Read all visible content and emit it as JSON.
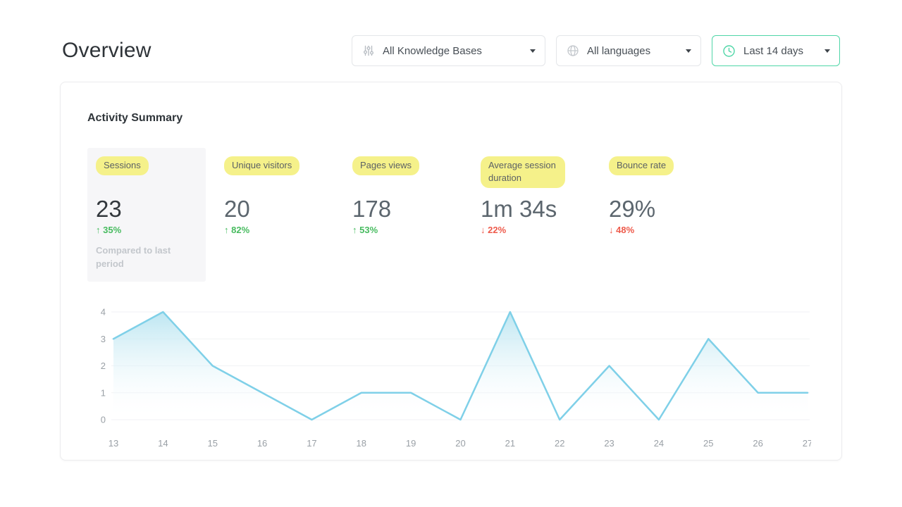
{
  "page": {
    "title": "Overview"
  },
  "filters": {
    "knowledge_bases": {
      "label": "All Knowledge Bases",
      "icon": "sliders-icon"
    },
    "languages": {
      "label": "All languages",
      "icon": "globe-icon"
    },
    "date_range": {
      "label": "Last 14 days",
      "icon": "clock-icon",
      "accent_color": "#4fd6a7"
    }
  },
  "activity_summary": {
    "title": "Activity Summary",
    "metrics": [
      {
        "label": "Sessions",
        "value": "23",
        "arrow": "↑",
        "delta": "35%",
        "direction": "up",
        "note": "Compared to last period",
        "selected": true
      },
      {
        "label": "Unique visitors",
        "value": "20",
        "arrow": "↑",
        "delta": "82%",
        "direction": "up",
        "note": "",
        "selected": false
      },
      {
        "label": "Pages views",
        "value": "178",
        "arrow": "↑",
        "delta": "53%",
        "direction": "up",
        "note": "",
        "selected": false
      },
      {
        "label": "Average session duration",
        "value": "1m 34s",
        "arrow": "↓",
        "delta": "22%",
        "direction": "down",
        "note": "",
        "selected": false
      },
      {
        "label": "Bounce rate",
        "value": "29%",
        "arrow": "↓",
        "delta": "48%",
        "direction": "down",
        "note": "",
        "selected": false
      }
    ],
    "highlight_color": "#f5f18a",
    "up_color": "#47bb5f",
    "down_color": "#ee5a4b"
  },
  "chart_data": {
    "type": "area",
    "x": [
      13,
      14,
      15,
      16,
      17,
      18,
      19,
      20,
      21,
      22,
      23,
      24,
      25,
      26,
      27
    ],
    "values": [
      3,
      4,
      2,
      1,
      0,
      1,
      1,
      0,
      4,
      0,
      2,
      0,
      3,
      1,
      1
    ],
    "title": "",
    "xlabel": "",
    "ylabel": "",
    "ylim": [
      0,
      4
    ],
    "yticks": [
      0,
      1,
      2,
      3,
      4
    ],
    "grid": true,
    "legend": false,
    "line_color": "#7fd0e8",
    "fill_top_color": "#b5e3f0",
    "axis_label_color": "#9aa0a6",
    "gridline_color": "#f1f2f4"
  }
}
